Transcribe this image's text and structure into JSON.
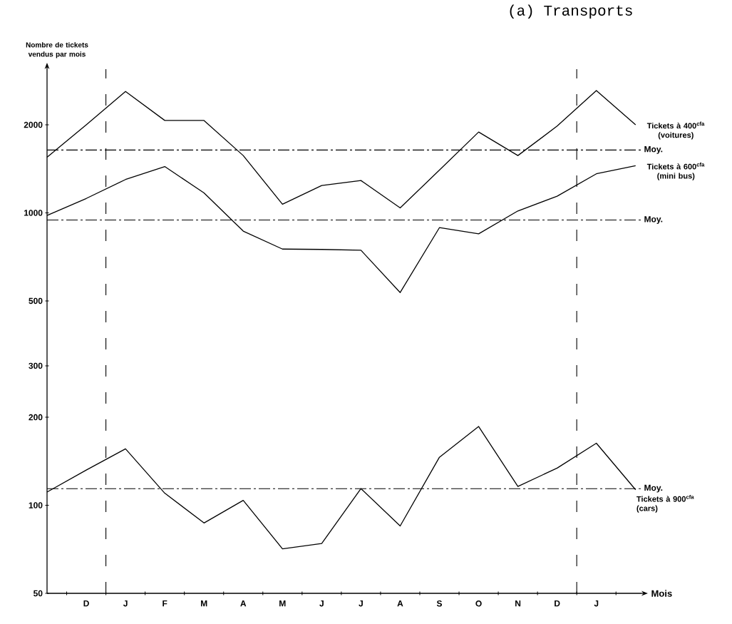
{
  "chart_data": {
    "type": "line",
    "title": "(a) Transports",
    "ylabel": "Nombre de tickets vendus par mois",
    "xlabel": "Mois",
    "categories": [
      null,
      "D",
      "J",
      "F",
      "M",
      "A",
      "M",
      "J",
      "J",
      "A",
      "S",
      "O",
      "N",
      "D",
      "J",
      null
    ],
    "series": [
      {
        "name": "Tickets à 400$^{cfa}$ (voitures)",
        "color": "#000000",
        "values": [
          1550,
          2000,
          2600,
          2070,
          2070,
          1570,
          1070,
          1240,
          1290,
          1040,
          1400,
          1890,
          1570,
          1980,
          2620,
          2000
        ]
      },
      {
        "name": "Tickets à 600$^{cfa}$ (mini bus)",
        "color": "#000000",
        "values": [
          980,
          1120,
          1300,
          1440,
          1170,
          866,
          752,
          750,
          745,
          534,
          890,
          848,
          1015,
          1140,
          1360,
          1450
        ]
      },
      {
        "name": "Tickets à 900$^{cfa}$ (cars)",
        "color": "#000000",
        "values": [
          111,
          132,
          156,
          110,
          87,
          104,
          71,
          74,
          114,
          85,
          146,
          186,
          116,
          134,
          163,
          113
        ]
      }
    ],
    "log": true,
    "ylim": [
      50,
      3100
    ],
    "yticks": [
      50,
      100,
      200,
      300,
      500,
      1000,
      2000
    ],
    "ref_lines": [
      {
        "axis": "y",
        "value": 1640,
        "label": "Moy.",
        "color": "#000000",
        "line_style": "dashed"
      },
      {
        "axis": "y",
        "value": 945,
        "label": "Moy.",
        "color": "#000000",
        "line_style": "dashed"
      },
      {
        "axis": "y",
        "value": 114,
        "label": "Moy.",
        "color": "#000000",
        "line_style": "dashed"
      }
    ],
    "grid": false,
    "legend": false,
    "marker": "none",
    "line_style": "solid"
  }
}
